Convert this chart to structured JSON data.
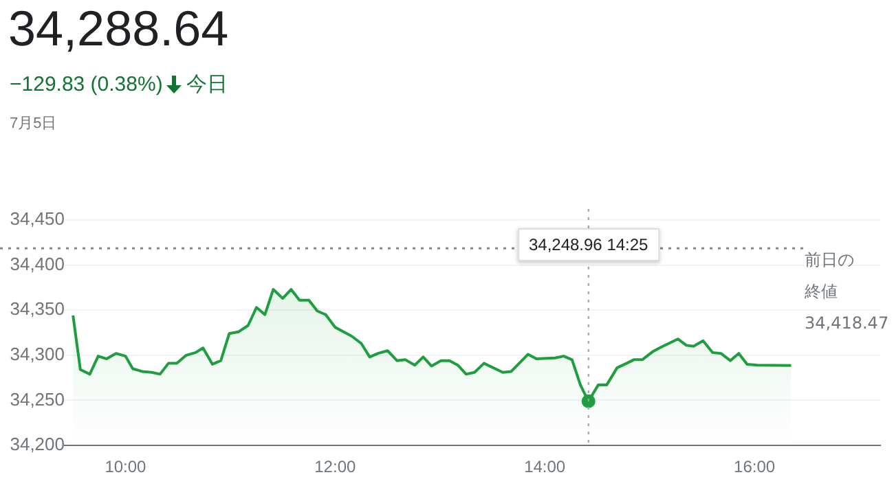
{
  "chart_data": {
    "type": "area",
    "title": "34,288.64",
    "subtitle": "−129.83 (0.38%)",
    "annotations": [
      "今日",
      "7月5日",
      "34,248.96 14:25"
    ],
    "x": [
      9.5,
      9.57,
      9.66,
      9.74,
      9.82,
      9.91,
      10.0,
      10.07,
      10.16,
      10.25,
      10.33,
      10.41,
      10.49,
      10.58,
      10.67,
      10.74,
      10.83,
      10.91,
      10.99,
      11.08,
      11.17,
      11.25,
      11.33,
      11.41,
      11.5,
      11.58,
      11.66,
      11.75,
      11.83,
      11.91,
      12.0,
      12.08,
      12.16,
      12.25,
      12.33,
      12.41,
      12.5,
      12.59,
      12.67,
      12.76,
      12.84,
      12.92,
      13.01,
      13.09,
      13.17,
      13.25,
      13.33,
      13.42,
      13.6,
      13.68,
      13.84,
      13.92,
      14.1,
      14.18,
      14.26,
      14.34,
      14.4167,
      14.51,
      14.59,
      14.69,
      14.78,
      14.85,
      14.93,
      15.03,
      15.11,
      15.27,
      15.35,
      15.42,
      15.51,
      15.6,
      15.68,
      15.77,
      15.85,
      15.93,
      16.03,
      16.35
    ],
    "series": [
      {
        "color": "#1e9e3e",
        "values": [
          34344,
          34284,
          34279,
          34299,
          34296,
          34302,
          34299,
          34285,
          34282,
          34281,
          34279,
          34291,
          34291,
          34300,
          34303,
          34308,
          34290,
          34294,
          34324,
          34326,
          34333,
          34353,
          34345,
          34373,
          34363,
          34373,
          34361,
          34361,
          34349,
          34345,
          34331,
          34326,
          34321,
          34313,
          34298,
          34302,
          34305,
          34294,
          34295,
          34289,
          34298,
          34288,
          34294,
          34294,
          34289,
          34279,
          34281,
          34291,
          34281,
          34282,
          34301,
          34296,
          34297,
          34299,
          34295,
          34267,
          34248.96,
          34267,
          34267,
          34286,
          34291,
          34295,
          34295,
          34304,
          34309,
          34318,
          34311,
          34310,
          34316,
          34303,
          34302,
          34294,
          34302,
          34290,
          34289,
          34288.64
        ]
      }
    ],
    "xlim": [
      9.42,
      17.2
    ],
    "xticks": [
      {
        "value": 10,
        "label": "10:00"
      },
      {
        "value": 12,
        "label": "12:00"
      },
      {
        "value": 14,
        "label": "14:00"
      },
      {
        "value": 16,
        "label": "16:00"
      }
    ],
    "ylim": [
      34200,
      34450
    ],
    "yticks": [
      {
        "value": 34200,
        "label": "34,200"
      },
      {
        "value": 34250,
        "label": "34,250"
      },
      {
        "value": 34300,
        "label": "34,300"
      },
      {
        "value": 34350,
        "label": "34,350"
      },
      {
        "value": 34400,
        "label": "34,400"
      },
      {
        "value": 34450,
        "label": "34,450"
      }
    ],
    "ref_lines": [
      {
        "axis": "y",
        "value": 34418.47,
        "label": "前日の終値 34,418.47",
        "color": "#80868b",
        "line_style": "dotted"
      },
      {
        "axis": "x",
        "value": 14.4167,
        "color": "#9aa0a6",
        "line_style": "dotted"
      }
    ],
    "grid": "y",
    "legend": false,
    "marker": "none",
    "line_style": "solid"
  }
}
